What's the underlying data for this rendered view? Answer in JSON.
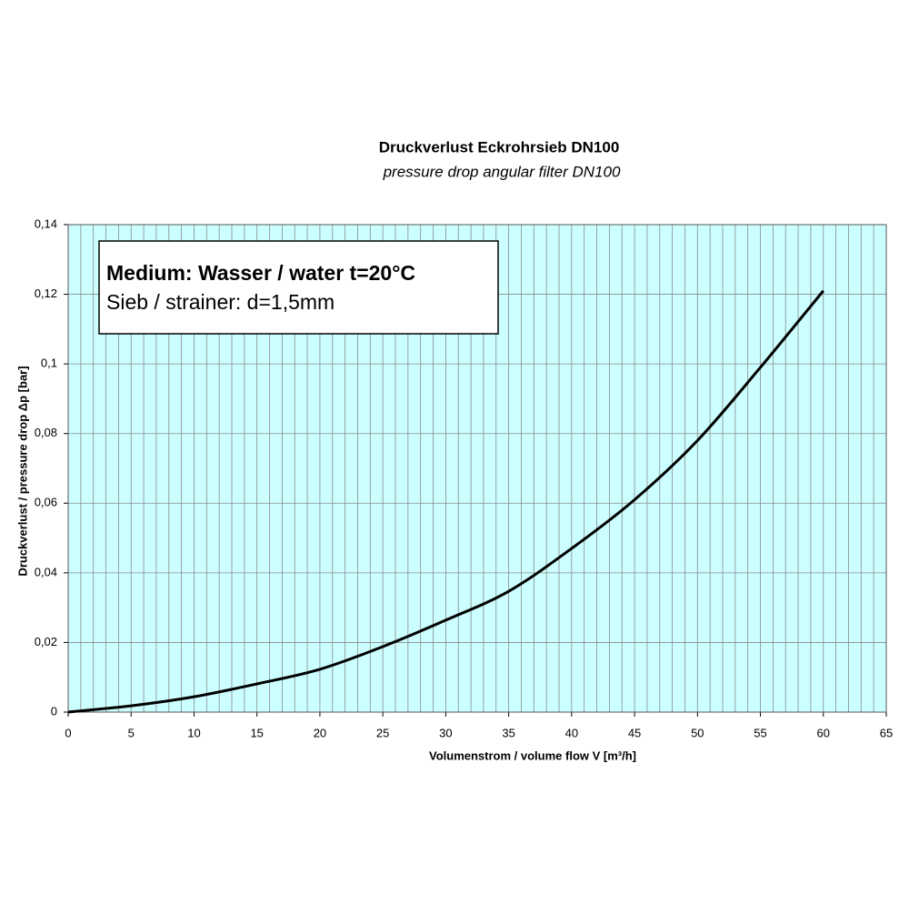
{
  "chart_data": {
    "type": "line",
    "title": "Druckverlust Eckrohrsieb DN100",
    "subtitle": "pressure drop angular filter DN100",
    "x_label": "Volumenstrom / volume flow V [m³/h]",
    "y_label": "Druckverlust / pressure drop Δp [bar]",
    "annotation": [
      "Medium: Wasser / water t=20°C",
      "Sieb / strainer: d=1,5mm"
    ],
    "x": [
      0,
      5,
      10,
      15,
      20,
      25,
      30,
      35,
      40,
      45,
      50,
      55,
      60
    ],
    "series": [
      {
        "color": "#000000",
        "values": [
          0,
          0.0018,
          0.0044,
          0.0081,
          0.0123,
          0.0188,
          0.0264,
          0.0347,
          0.047,
          0.061,
          0.078,
          0.099,
          0.121
        ]
      }
    ],
    "xlim": [
      0,
      65
    ],
    "xticks": [
      0,
      5,
      10,
      15,
      20,
      25,
      30,
      35,
      40,
      45,
      50,
      55,
      60,
      65
    ],
    "x_minor_grid": 1,
    "ylim": [
      0,
      0.14
    ],
    "yticks": [
      0,
      {
        "value": 0.02,
        "label": "0,02"
      },
      {
        "value": 0.04,
        "label": "0,04"
      },
      {
        "value": 0.06,
        "label": "0,06"
      },
      {
        "value": 0.08,
        "label": "0,08"
      },
      {
        "value": 0.1,
        "label": "0,1"
      },
      {
        "value": 0.12,
        "label": "0,12"
      },
      {
        "value": 0.14,
        "label": "0,14"
      }
    ],
    "grid": true,
    "background": "#ccffff"
  }
}
